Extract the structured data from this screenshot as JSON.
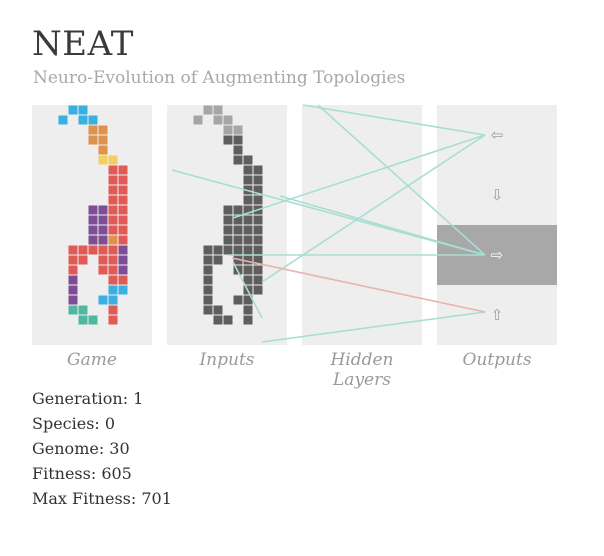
{
  "header": {
    "title": "NEAT",
    "subtitle": "Neuro-Evolution of Augmenting Topologies"
  },
  "panels": {
    "game": "Game",
    "inputs": "Inputs",
    "hidden": "Hidden Layers",
    "outputs": "Outputs"
  },
  "outputs": [
    {
      "icon": "left-arrow-icon",
      "glyph": "⇦",
      "active": false
    },
    {
      "icon": "down-arrow-icon",
      "glyph": "⇩",
      "active": false
    },
    {
      "icon": "right-arrow-icon",
      "glyph": "⇨",
      "active": true
    },
    {
      "icon": "up-arrow-icon",
      "glyph": "⇧",
      "active": false
    }
  ],
  "stats": {
    "generation": "Generation: 1",
    "species": "Species: 0",
    "genome": "Genome: 30",
    "fitness": "Fitness: 605",
    "max_fitness": "Max Fitness: 701"
  },
  "colors": {
    "cyan": "#3ab0e2",
    "orange": "#df924a",
    "yellow": "#f2cf62",
    "red": "#e05a56",
    "purple": "#7d4e96",
    "teal": "#4fb89f",
    "dark": "#5e5e5e",
    "light": "#a6a6a6",
    "panel": "#eeeeee",
    "connection_positive": "#a8ded2",
    "connection_negative": "#e8b3ae"
  }
}
